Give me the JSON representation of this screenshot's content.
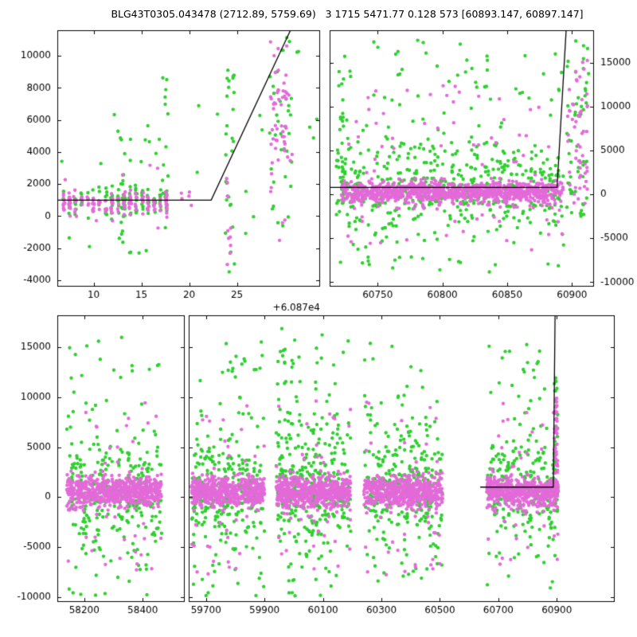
{
  "title": "BLG43T0305.043478 (2712.89, 5759.69)   3 1715 5471.77 0.128 573 [60893.147, 60897.147]",
  "colors": {
    "background": "#ffffff",
    "axes": "#000000",
    "model_line": "#000000",
    "series_green": "#2fcf2f",
    "series_magenta": "#e36ad8"
  },
  "chart_data": [
    {
      "id": "p1",
      "name": "zoomed-light-curve",
      "type": "scatter",
      "xlim": [
        6.2,
        33.7
      ],
      "ylim": [
        -4400,
        11600
      ],
      "x_offset_label": "+6.087e4",
      "xticks": [
        {
          "v": 10,
          "label": "10"
        },
        {
          "v": 15,
          "label": "15"
        },
        {
          "v": 20,
          "label": "20"
        },
        {
          "v": 25,
          "label": "25"
        }
      ],
      "yticks": [
        {
          "v": -4000,
          "label": "-4000"
        },
        {
          "v": -2000,
          "label": "-2000"
        },
        {
          "v": 0,
          "label": "0"
        },
        {
          "v": 2000,
          "label": "2000"
        },
        {
          "v": 4000,
          "label": "4000"
        },
        {
          "v": 6000,
          "label": "6000"
        },
        {
          "v": 8000,
          "label": "8000"
        },
        {
          "v": 10000,
          "label": "10000"
        }
      ],
      "yaxis_side": "left",
      "model_line": [
        [
          6.2,
          1000
        ],
        [
          22.3,
          1000
        ],
        [
          30.6,
          11600
        ]
      ],
      "series": [
        {
          "name": "green-points",
          "color": "#2fcf2f",
          "clusters": [
            {
              "n": 125,
              "nights": [
                6.9,
                7.5,
                8.1,
                8.75,
                9.4,
                10.0,
                10.6,
                11.3,
                11.9,
                12.55,
                13.2,
                13.8,
                14.45,
                15.1,
                15.7,
                16.35,
                17.0,
                17.6
              ],
              "jitter": 0.09,
              "y_gauss": [
                900,
                450
              ]
            },
            {
              "n": 18,
              "x": [
                12.85,
                13.35
              ],
              "y_uniform": [
                -2500,
                4800
              ]
            },
            {
              "n": 13,
              "x": [
                17.1,
                17.8
              ],
              "y_uniform": [
                -900,
                8800
              ]
            },
            {
              "n": 15,
              "x": [
                6.6,
                17.5
              ],
              "y_uniform": [
                1700,
                6600
              ]
            },
            {
              "n": 7,
              "x": [
                6.8,
                17.3
              ],
              "y_uniform": [
                -2600,
                -600
              ]
            },
            {
              "n": 26,
              "x": [
                23.8,
                24.8
              ],
              "y_uniform": [
                -3600,
                9300
              ]
            },
            {
              "n": 9,
              "x": [
                20.3,
                27.8
              ],
              "y_uniform": [
                -1400,
                8400
              ]
            },
            {
              "n": 34,
              "x": [
                28.4,
                31.0
              ],
              "y_uniform": [
                -1300,
                11400
              ]
            },
            {
              "n": 5,
              "x": [
                31.2,
                33.4
              ],
              "y_uniform": [
                4800,
                10800
              ]
            }
          ]
        },
        {
          "name": "magenta-points",
          "color": "#e36ad8",
          "clusters": [
            {
              "n": 150,
              "nights": [
                6.9,
                7.5,
                8.1,
                8.75,
                9.4,
                10.0,
                10.6,
                11.3,
                11.9,
                12.55,
                13.2,
                13.8,
                14.45,
                15.1,
                15.7,
                16.35,
                17.0,
                17.6
              ],
              "jitter": 0.09,
              "y_gauss": [
                820,
                360
              ]
            },
            {
              "n": 10,
              "x": [
                6.9,
                17.4
              ],
              "y_uniform": [
                -1600,
                3600
              ]
            },
            {
              "n": 11,
              "x": [
                23.9,
                24.6
              ],
              "y_uniform": [
                -3400,
                2400
              ]
            },
            {
              "n": 5,
              "x": [
                18.9,
                20.3
              ],
              "y_uniform": [
                600,
                1600
              ]
            },
            {
              "n": 55,
              "x": [
                28.5,
                30.8
              ],
              "y_gauss": [
                6400,
                2500
              ]
            }
          ]
        }
      ]
    },
    {
      "id": "p2",
      "name": "recent-season-light-curve",
      "type": "scatter",
      "xlim": [
        60713,
        60917
      ],
      "ylim": [
        -10500,
        18700
      ],
      "xticks": [
        {
          "v": 60750,
          "label": "60750"
        },
        {
          "v": 60800,
          "label": "60800"
        },
        {
          "v": 60850,
          "label": "60850"
        },
        {
          "v": 60900,
          "label": "60900"
        }
      ],
      "yticks": [
        {
          "v": -10000,
          "label": "-10000"
        },
        {
          "v": -5000,
          "label": "-5000"
        },
        {
          "v": 0,
          "label": "0"
        },
        {
          "v": 5000,
          "label": "5000"
        },
        {
          "v": 10000,
          "label": "10000"
        },
        {
          "v": 15000,
          "label": "15000"
        }
      ],
      "yaxis_side": "right",
      "model_line": [
        [
          60713,
          800
        ],
        [
          60888.5,
          800
        ],
        [
          60895.5,
          18700
        ]
      ],
      "series": [
        {
          "name": "green-points",
          "color": "#2fcf2f",
          "clusters": [
            {
              "n": 420,
              "x": [
                60718,
                60894
              ],
              "y_gauss": [
                900,
                2600
              ]
            },
            {
              "n": 130,
              "x": [
                60718,
                60894
              ],
              "y_uniform": [
                -9800,
                17800
              ]
            },
            {
              "n": 22,
              "x": [
                60719,
                60724
              ],
              "y_uniform": [
                -2500,
                13500
              ]
            },
            {
              "n": 55,
              "x": [
                60896,
                60913
              ],
              "y_uniform": [
                -2500,
                17800
              ]
            }
          ]
        },
        {
          "name": "magenta-points",
          "color": "#e36ad8",
          "clusters": [
            {
              "n": 950,
              "x": [
                60722,
                60893
              ],
              "y_gauss": [
                250,
                600
              ]
            },
            {
              "n": 70,
              "x": [
                60722,
                60893
              ],
              "y_uniform": [
                -6500,
                12500
              ]
            },
            {
              "n": 25,
              "x": [
                60722,
                60893
              ],
              "y_gauss": [
                -1200,
                1500
              ]
            },
            {
              "n": 55,
              "x": [
                60896,
                60912
              ],
              "y_uniform": [
                -1500,
                15500
              ]
            }
          ]
        }
      ]
    },
    {
      "id": "p3",
      "name": "full-light-curve",
      "type": "scatter",
      "segments": [
        {
          "xlim": [
            58108,
            58545
          ]
        },
        {
          "xlim": [
            59642,
            61098
          ]
        }
      ],
      "ylim": [
        -10500,
        18200
      ],
      "xticks": [
        {
          "v": 58200,
          "label": "58200"
        },
        {
          "v": 58400,
          "label": "58400"
        },
        {
          "v": 59700,
          "label": "59700"
        },
        {
          "v": 59900,
          "label": "59900"
        },
        {
          "v": 60100,
          "label": "60100"
        },
        {
          "v": 60300,
          "label": "60300"
        },
        {
          "v": 60500,
          "label": "60500"
        },
        {
          "v": 60700,
          "label": "60700"
        },
        {
          "v": 60900,
          "label": "60900"
        }
      ],
      "yticks": [
        {
          "v": -10000,
          "label": "-10000"
        },
        {
          "v": -5000,
          "label": "-5000"
        },
        {
          "v": 0,
          "label": "0"
        },
        {
          "v": 5000,
          "label": "5000"
        },
        {
          "v": 10000,
          "label": "10000"
        },
        {
          "v": 15000,
          "label": "15000"
        }
      ],
      "yaxis_side": "left",
      "model_line": [
        [
          60638,
          1000
        ],
        [
          60888,
          1000
        ],
        [
          60894,
          18200
        ]
      ],
      "series": [
        {
          "name": "green-points",
          "color": "#2fcf2f",
          "clusters": [
            {
              "n": 230,
              "x": [
                58140,
                58465
              ],
              "y_gauss": [
                900,
                2600
              ]
            },
            {
              "n": 85,
              "x": [
                58140,
                58465
              ],
              "y_uniform": [
                -9900,
                16500
              ]
            },
            {
              "n": 210,
              "x": [
                59650,
                59900
              ],
              "y_gauss": [
                900,
                2600
              ]
            },
            {
              "n": 75,
              "x": [
                59650,
                59900
              ],
              "y_uniform": [
                -9900,
                16500
              ]
            },
            {
              "n": 260,
              "x": [
                59940,
                60195
              ],
              "y_gauss": [
                900,
                2800
              ]
            },
            {
              "n": 120,
              "x": [
                59940,
                60195
              ],
              "y_uniform": [
                -9900,
                17000
              ]
            },
            {
              "n": 220,
              "x": [
                60240,
                60510
              ],
              "y_gauss": [
                900,
                2600
              ]
            },
            {
              "n": 80,
              "x": [
                60240,
                60510
              ],
              "y_uniform": [
                -9900,
                16000
              ]
            },
            {
              "n": 190,
              "x": [
                60660,
                60905
              ],
              "y_gauss": [
                900,
                2500
              ]
            },
            {
              "n": 70,
              "x": [
                60660,
                60905
              ],
              "y_uniform": [
                -9900,
                15500
              ]
            },
            {
              "n": 25,
              "x": [
                60890,
                60903
              ],
              "y_uniform": [
                -1000,
                12000
              ]
            }
          ]
        },
        {
          "name": "magenta-points",
          "color": "#e36ad8",
          "clusters": [
            {
              "n": 620,
              "x": [
                58140,
                58465
              ],
              "y_gauss": [
                550,
                750
              ]
            },
            {
              "n": 40,
              "x": [
                58140,
                58465
              ],
              "y_uniform": [
                -7800,
                9800
              ]
            },
            {
              "n": 520,
              "x": [
                59650,
                59900
              ],
              "y_gauss": [
                550,
                750
              ]
            },
            {
              "n": 35,
              "x": [
                59650,
                59900
              ],
              "y_uniform": [
                -7800,
                9800
              ]
            },
            {
              "n": 560,
              "x": [
                59940,
                60195
              ],
              "y_gauss": [
                550,
                780
              ]
            },
            {
              "n": 40,
              "x": [
                59940,
                60195
              ],
              "y_uniform": [
                -7800,
                9800
              ]
            },
            {
              "n": 530,
              "x": [
                60240,
                60510
              ],
              "y_gauss": [
                550,
                750
              ]
            },
            {
              "n": 38,
              "x": [
                60240,
                60510
              ],
              "y_uniform": [
                -7800,
                9800
              ]
            },
            {
              "n": 480,
              "x": [
                60660,
                60905
              ],
              "y_gauss": [
                550,
                750
              ]
            },
            {
              "n": 35,
              "x": [
                60660,
                60905
              ],
              "y_uniform": [
                -7800,
                9500
              ]
            },
            {
              "n": 45,
              "x": [
                60891,
                60903
              ],
              "y_uniform": [
                -500,
                10500
              ]
            }
          ]
        }
      ]
    }
  ]
}
